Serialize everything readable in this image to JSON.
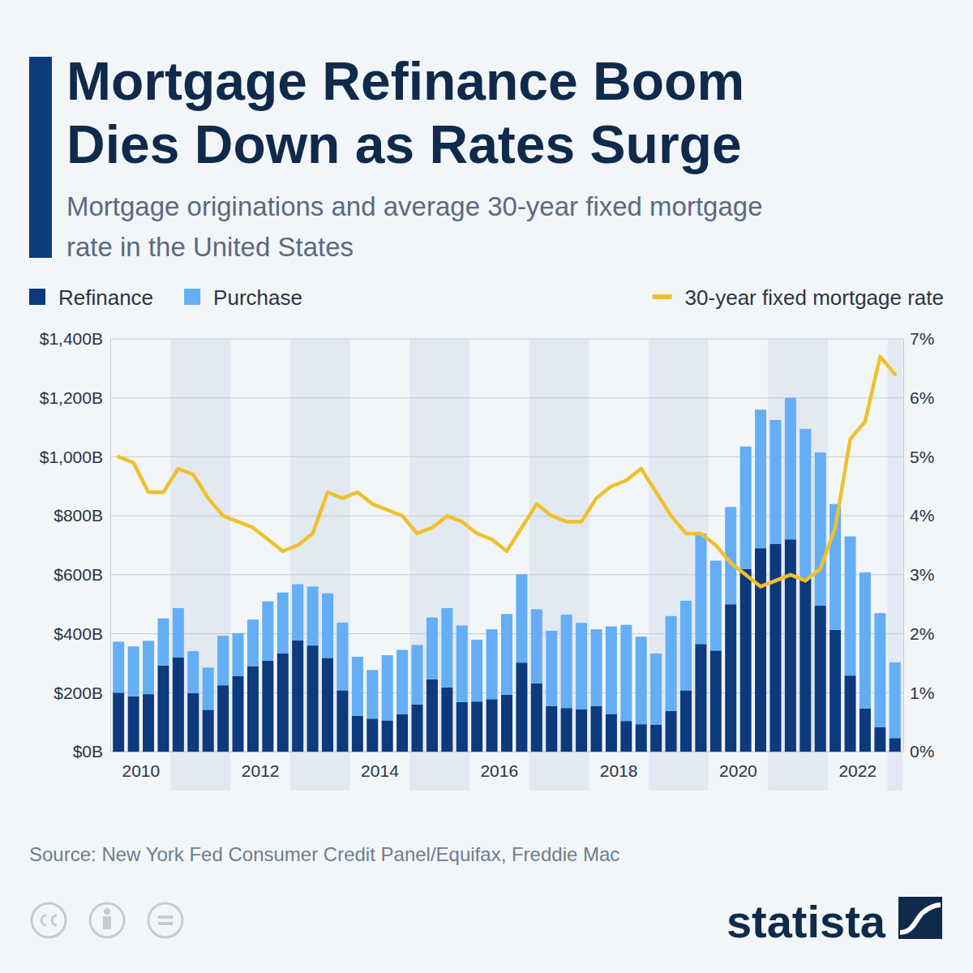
{
  "chart_data": {
    "type": "bar",
    "title": "Mortgage Refinance Boom Dies Down as Rates Surge",
    "subtitle": "Mortgage originations and average 30-year fixed mortgage rate in the United States",
    "source": "Source: New York Fed Consumer Credit Panel/Equifax, Freddie Mac",
    "brand": "statista",
    "stacked": true,
    "grid": true,
    "legend": "top",
    "categories": [
      null,
      "2010",
      null,
      null,
      null,
      null,
      null,
      null,
      null,
      "2012",
      null,
      null,
      null,
      null,
      null,
      null,
      null,
      "2014",
      null,
      null,
      null,
      null,
      null,
      null,
      null,
      "2016",
      null,
      null,
      null,
      null,
      null,
      null,
      null,
      "2018",
      null,
      null,
      null,
      null,
      null,
      null,
      null,
      "2020",
      null,
      null,
      null,
      null,
      null,
      null,
      null,
      "2022",
      null,
      null,
      null
    ],
    "series": [
      {
        "name": "Refinance",
        "type": "bar",
        "color": "#0c3a7d",
        "values": [
          200,
          188,
          195,
          292,
          320,
          198,
          142,
          225,
          257,
          290,
          308,
          333,
          378,
          360,
          318,
          208,
          122,
          112,
          106,
          127,
          160,
          245,
          218,
          168,
          170,
          178,
          193,
          302,
          232,
          155,
          148,
          143,
          155,
          128,
          104,
          93,
          92,
          138,
          208,
          365,
          343,
          500,
          620,
          690,
          705,
          720,
          590,
          495,
          413,
          258,
          147,
          83,
          46
        ]
      },
      {
        "name": "Purchase",
        "type": "bar",
        "color": "#64aef5",
        "values": [
          173,
          169,
          181,
          160,
          167,
          143,
          143,
          168,
          145,
          158,
          202,
          207,
          190,
          200,
          219,
          230,
          200,
          165,
          221,
          218,
          202,
          210,
          269,
          260,
          210,
          237,
          274,
          300,
          251,
          255,
          317,
          294,
          260,
          297,
          326,
          297,
          241,
          322,
          304,
          375,
          305,
          330,
          415,
          470,
          420,
          480,
          505,
          520,
          427,
          472,
          461,
          387,
          257
        ]
      },
      {
        "name": "30-year fixed mortgage rate",
        "type": "line",
        "axis": "y2",
        "color": "#f0c02c",
        "values": [
          5.0,
          4.9,
          4.4,
          4.4,
          4.8,
          4.7,
          4.3,
          4.0,
          3.9,
          3.8,
          3.6,
          3.4,
          3.5,
          3.7,
          4.4,
          4.3,
          4.4,
          4.2,
          4.1,
          4.0,
          3.7,
          3.8,
          4.0,
          3.9,
          3.7,
          3.6,
          3.4,
          3.8,
          4.2,
          4.0,
          3.9,
          3.9,
          4.3,
          4.5,
          4.6,
          4.8,
          4.4,
          4.0,
          3.7,
          3.7,
          3.5,
          3.2,
          3.0,
          2.8,
          2.9,
          3.0,
          2.9,
          3.1,
          3.8,
          5.3,
          5.6,
          6.7,
          6.4
        ]
      }
    ],
    "ylim": [
      0,
      1400
    ],
    "yticks": [
      {
        "value": 0,
        "label": "$0B"
      },
      {
        "value": 200,
        "label": "$200B"
      },
      {
        "value": 400,
        "label": "$400B"
      },
      {
        "value": 600,
        "label": "$600B"
      },
      {
        "value": 800,
        "label": "$800B"
      },
      {
        "value": 1000,
        "label": "$1,000B"
      },
      {
        "value": 1200,
        "label": "$1,200B"
      },
      {
        "value": 1400,
        "label": "$1,400B"
      }
    ],
    "y2lim": [
      0,
      7
    ],
    "y2ticks": [
      {
        "value": 0,
        "label": "0%"
      },
      {
        "value": 1,
        "label": "1%"
      },
      {
        "value": 2,
        "label": "2%"
      },
      {
        "value": 3,
        "label": "3%"
      },
      {
        "value": 4,
        "label": "4%"
      },
      {
        "value": 5,
        "label": "5%"
      },
      {
        "value": 6,
        "label": "6%"
      },
      {
        "value": 7,
        "label": "7%"
      }
    ]
  }
}
